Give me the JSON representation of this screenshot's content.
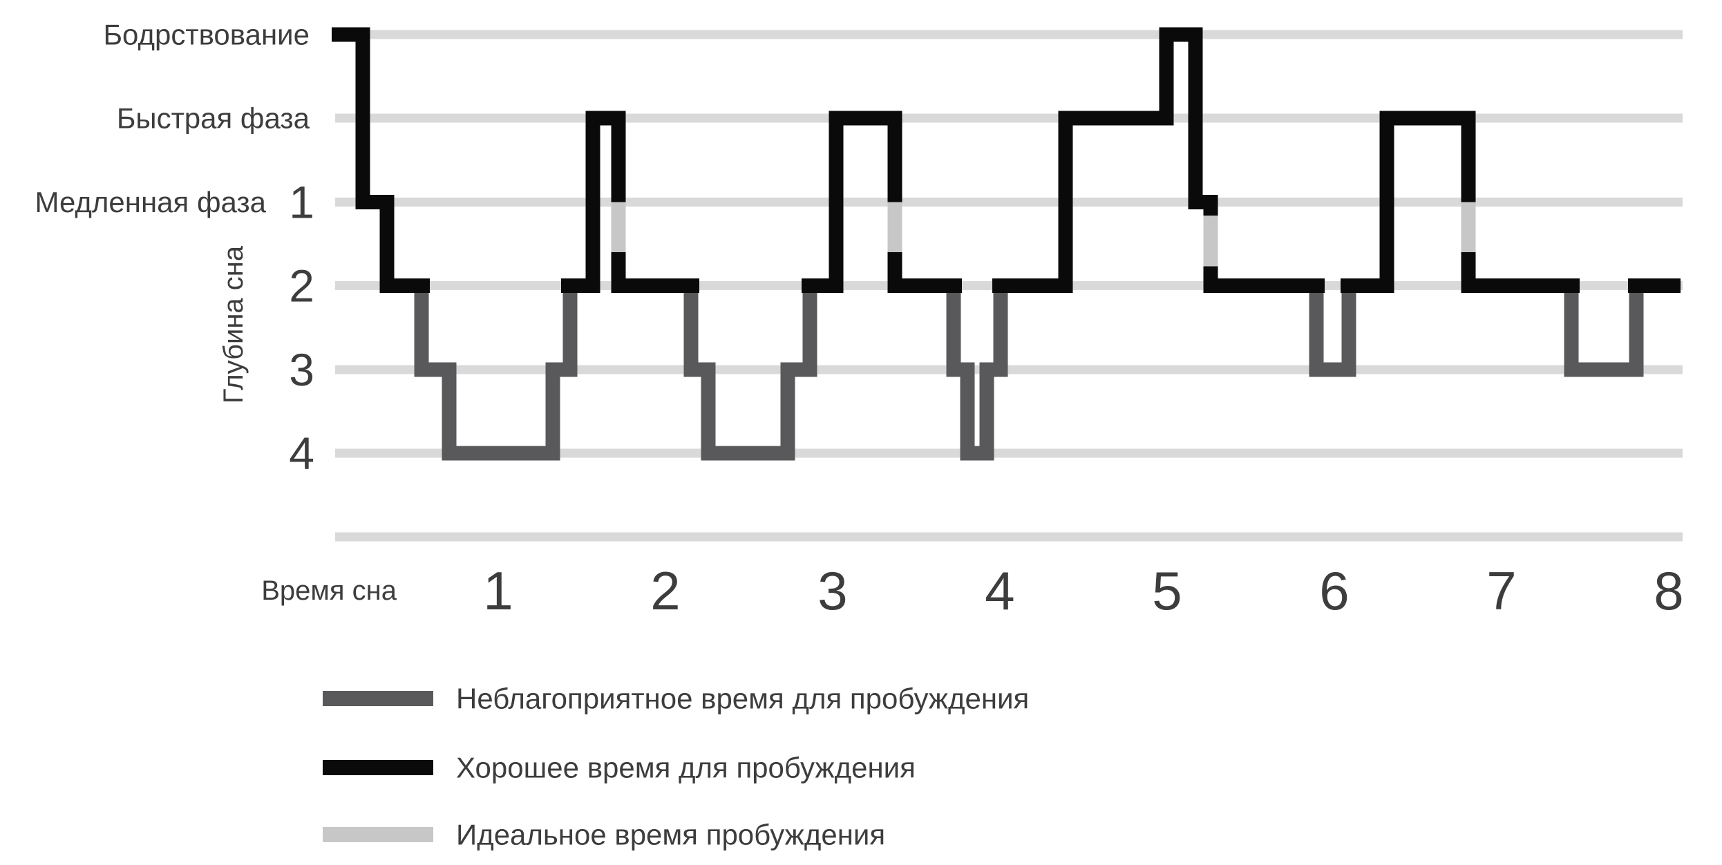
{
  "chart_data": {
    "type": "line",
    "subtype": "step-hypnogram",
    "title": "",
    "x_axis": {
      "title": "Время сна",
      "ticks": [
        "1",
        "2",
        "3",
        "4",
        "5",
        "6",
        "7",
        "8"
      ],
      "range_hours": [
        0,
        8
      ]
    },
    "y_axis": {
      "title": "Глубина сна",
      "stage_labels": [
        {
          "text": "Бодрствование",
          "level": 0
        },
        {
          "text": "Быстрая фаза",
          "level": 1
        },
        {
          "text": "Медленная фаза",
          "level": 2
        }
      ],
      "depth_ticks": [
        {
          "text": "1",
          "level": 2
        },
        {
          "text": "2",
          "level": 3
        },
        {
          "text": "3",
          "level": 4
        },
        {
          "text": "4",
          "level": 5
        }
      ],
      "gridline_levels": [
        0,
        1,
        2,
        3,
        4,
        5,
        6
      ]
    },
    "legend": [
      {
        "key": "unfavorable",
        "label": "Неблагоприятное время для пробуждения"
      },
      {
        "key": "good",
        "label": "Хорошее время для пробуждения"
      },
      {
        "key": "ideal",
        "label": "Идеальное время пробуждения"
      }
    ],
    "colors": {
      "good": "#0a0a0a",
      "unfavorable": "#59595b",
      "ideal": "#c7c7c7",
      "gridline": "#d9d9d9",
      "text": "#3d3d3d"
    },
    "series_segments": [
      {
        "key": "ideal",
        "points": [
          [
            1.719,
            1.955
          ],
          [
            1.719,
            2.64
          ]
        ]
      },
      {
        "key": "ideal",
        "points": [
          [
            3.372,
            1.955
          ],
          [
            3.372,
            2.64
          ]
        ]
      },
      {
        "key": "ideal",
        "points": [
          [
            5.26,
            2.13
          ],
          [
            5.26,
            2.81
          ]
        ]
      },
      {
        "key": "ideal",
        "points": [
          [
            6.802,
            1.955
          ],
          [
            6.802,
            2.64
          ]
        ]
      },
      {
        "key": "unfavorable",
        "points": [
          [
            0.541,
            3
          ],
          [
            0.541,
            4
          ],
          [
            0.707,
            4
          ],
          [
            0.707,
            5
          ],
          [
            1.326,
            5
          ],
          [
            1.326,
            4
          ],
          [
            1.43,
            4
          ],
          [
            1.43,
            3
          ]
        ]
      },
      {
        "key": "unfavorable",
        "points": [
          [
            2.153,
            3
          ],
          [
            2.153,
            4
          ],
          [
            2.256,
            4
          ],
          [
            2.256,
            5
          ],
          [
            2.731,
            5
          ],
          [
            2.731,
            4
          ],
          [
            2.864,
            4
          ],
          [
            2.864,
            3
          ]
        ]
      },
      {
        "key": "unfavorable",
        "points": [
          [
            3.723,
            3
          ],
          [
            3.723,
            4
          ],
          [
            3.806,
            4
          ],
          [
            3.806,
            5
          ],
          [
            3.921,
            5
          ],
          [
            3.921,
            4
          ],
          [
            4.004,
            4
          ],
          [
            4.004,
            3
          ]
        ]
      },
      {
        "key": "unfavorable",
        "points": [
          [
            5.893,
            3
          ],
          [
            5.893,
            4
          ],
          [
            6.087,
            4
          ],
          [
            6.087,
            3
          ]
        ]
      },
      {
        "key": "unfavorable",
        "points": [
          [
            7.417,
            3
          ],
          [
            7.417,
            4
          ],
          [
            7.806,
            4
          ],
          [
            7.806,
            3
          ]
        ]
      },
      {
        "key": "good",
        "points": [
          [
            0.004,
            0
          ],
          [
            0.19,
            0
          ],
          [
            0.19,
            2
          ],
          [
            0.335,
            2
          ],
          [
            0.335,
            3
          ],
          [
            0.591,
            3
          ]
        ]
      },
      {
        "key": "good",
        "points": [
          [
            1.376,
            3
          ],
          [
            1.566,
            3
          ],
          [
            1.566,
            1
          ],
          [
            1.719,
            1
          ],
          [
            1.719,
            2.0
          ]
        ]
      },
      {
        "key": "good",
        "points": [
          [
            1.719,
            2.6
          ],
          [
            1.719,
            3
          ],
          [
            2.202,
            3
          ]
        ]
      },
      {
        "key": "good",
        "points": [
          [
            2.814,
            3
          ],
          [
            3.021,
            3
          ],
          [
            3.021,
            1
          ],
          [
            3.372,
            1
          ],
          [
            3.372,
            2.0
          ]
        ]
      },
      {
        "key": "good",
        "points": [
          [
            3.372,
            2.6
          ],
          [
            3.372,
            3
          ],
          [
            3.773,
            3
          ]
        ]
      },
      {
        "key": "good",
        "points": [
          [
            3.954,
            3
          ],
          [
            4.392,
            3
          ],
          [
            4.392,
            1
          ],
          [
            4.996,
            1
          ],
          [
            4.996,
            0
          ],
          [
            5.169,
            0
          ],
          [
            5.169,
            2
          ],
          [
            5.26,
            2
          ],
          [
            5.26,
            2.16
          ]
        ]
      },
      {
        "key": "good",
        "points": [
          [
            5.26,
            2.77
          ],
          [
            5.26,
            3
          ],
          [
            5.942,
            3
          ]
        ]
      },
      {
        "key": "good",
        "points": [
          [
            6.037,
            3
          ],
          [
            6.314,
            3
          ],
          [
            6.314,
            1
          ],
          [
            6.802,
            1
          ],
          [
            6.802,
            2.0
          ]
        ]
      },
      {
        "key": "good",
        "points": [
          [
            6.802,
            2.6
          ],
          [
            6.802,
            3
          ],
          [
            7.467,
            3
          ]
        ]
      },
      {
        "key": "good",
        "points": [
          [
            7.756,
            3
          ],
          [
            8.07,
            3
          ]
        ]
      }
    ]
  }
}
